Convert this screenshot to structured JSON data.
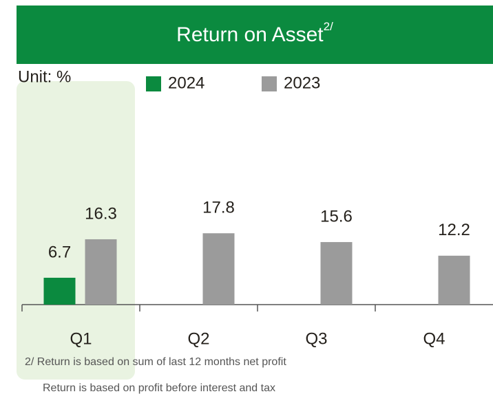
{
  "chart_data": {
    "type": "bar",
    "title": "Return on Asset",
    "title_superscript": "2/",
    "unit_label": "Unit: %",
    "categories": [
      "Q1",
      "Q2",
      "Q3",
      "Q4"
    ],
    "series": [
      {
        "name": "2024",
        "color": "#0b8a3f",
        "values": [
          6.7,
          null,
          null,
          null
        ]
      },
      {
        "name": "2023",
        "color": "#9b9b9b",
        "values": [
          16.3,
          17.8,
          15.6,
          12.2
        ]
      }
    ],
    "highlight_color": "#e9f3e1",
    "header_color": "#0b8a3f",
    "footnotes": [
      "2/ Return is based on sum of last 12 months net profit",
      "Return is based on profit before interest and tax"
    ]
  }
}
